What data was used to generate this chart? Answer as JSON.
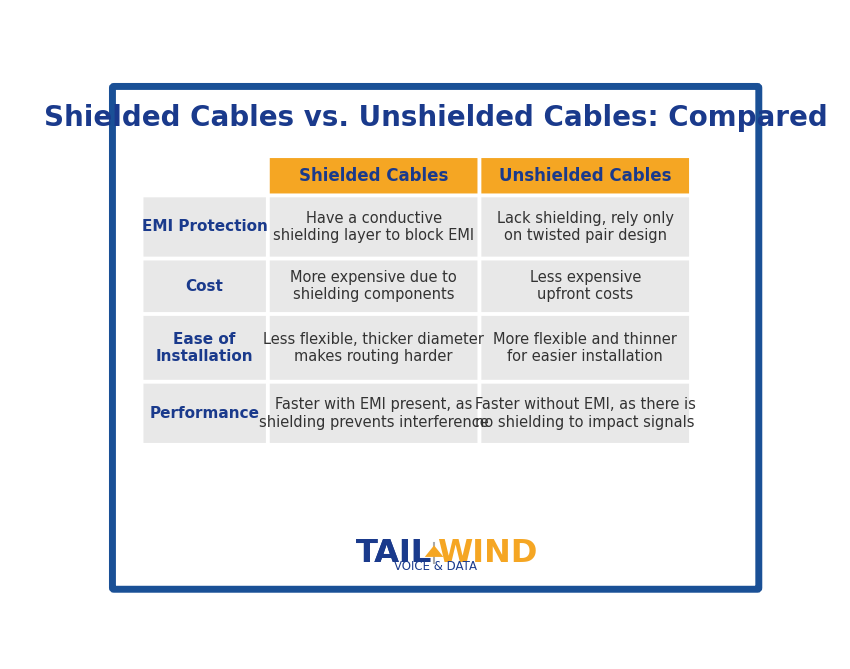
{
  "title": "Shielded Cables vs. Unshielded Cables: Compared",
  "title_color": "#1a3a8c",
  "background_color": "#ffffff",
  "border_color": "#1a5096",
  "header_bg_color": "#f5a623",
  "header_text_color": "#1a3a8c",
  "row_bg_color": "#e8e8e8",
  "row_label_color": "#1a3a8c",
  "cell_text_color": "#333333",
  "headers": [
    "Shielded Cables",
    "Unshielded Cables"
  ],
  "row_labels": [
    "EMI Protection",
    "Cost",
    "Ease of\nInstallation",
    "Performance"
  ],
  "shielded_data": [
    "Have a conductive\nshielding layer to block EMI",
    "More expensive due to\nshielding components",
    "Less flexible, thicker diameter\nmakes routing harder",
    "Faster with EMI present, as\nshielding prevents interference"
  ],
  "unshielded_data": [
    "Lack shielding, rely only\non twisted pair design",
    "Less expensive\nupfront costs",
    "More flexible and thinner\nfor easier installation",
    "Faster without EMI, as there is\nno shielding to impact signals"
  ],
  "tailwind_left_color": "#1a3a8c",
  "tailwind_right_color": "#f5a623",
  "tailwind_sub": "VOICE & DATA",
  "separator_color": "#aaaaaa"
}
